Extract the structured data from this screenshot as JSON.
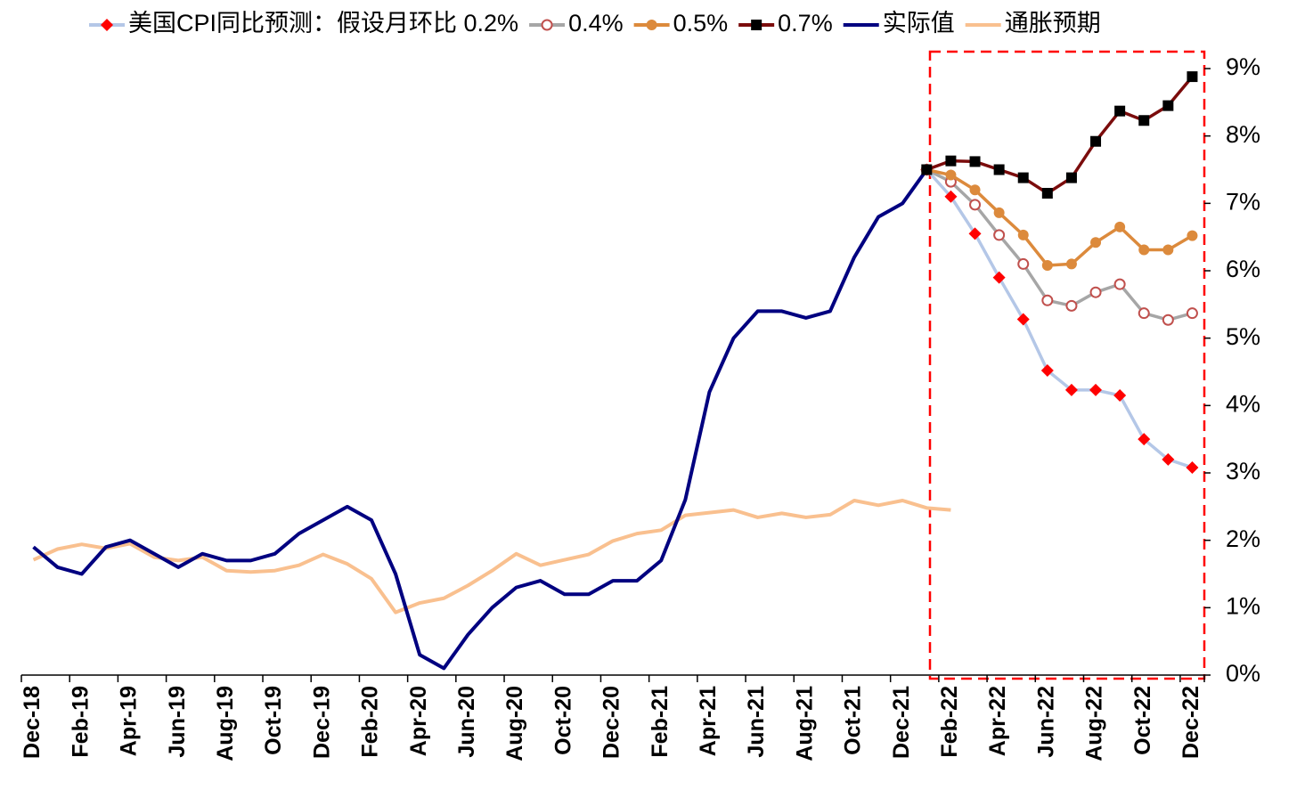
{
  "chart_data": {
    "type": "line",
    "categories": [
      "Dec-18",
      null,
      "Feb-19",
      null,
      "Apr-19",
      null,
      "Jun-19",
      null,
      "Aug-19",
      null,
      "Oct-19",
      null,
      "Dec-19",
      null,
      "Feb-20",
      null,
      "Apr-20",
      null,
      "Jun-20",
      null,
      "Aug-20",
      null,
      "Oct-20",
      null,
      "Dec-20",
      null,
      "Feb-21",
      null,
      "Apr-21",
      null,
      "Jun-21",
      null,
      "Aug-21",
      null,
      "Oct-21",
      null,
      "Dec-21",
      null,
      "Feb-22",
      null,
      "Apr-22",
      null,
      "Jun-22",
      null,
      "Aug-22",
      null,
      "Oct-22",
      null,
      "Dec-22"
    ],
    "series": [
      {
        "name": "美国CPI同比预测：假设月环比 0.2%",
        "color": "#b4c7e7",
        "marker": "diamond",
        "marker_color": "#ff0000",
        "values": [
          null,
          null,
          null,
          null,
          null,
          null,
          null,
          null,
          null,
          null,
          null,
          null,
          null,
          null,
          null,
          null,
          null,
          null,
          null,
          null,
          null,
          null,
          null,
          null,
          null,
          null,
          null,
          null,
          null,
          null,
          null,
          null,
          null,
          null,
          null,
          null,
          null,
          7.5,
          7.1,
          6.55,
          5.9,
          5.28,
          4.52,
          4.23,
          4.23,
          4.15,
          3.5,
          3.2,
          3.08
        ]
      },
      {
        "name": "0.4%",
        "color": "#a6a6a6",
        "marker": "circle",
        "marker_color": "#c0504d",
        "values": [
          null,
          null,
          null,
          null,
          null,
          null,
          null,
          null,
          null,
          null,
          null,
          null,
          null,
          null,
          null,
          null,
          null,
          null,
          null,
          null,
          null,
          null,
          null,
          null,
          null,
          null,
          null,
          null,
          null,
          null,
          null,
          null,
          null,
          null,
          null,
          null,
          null,
          7.5,
          7.32,
          6.98,
          6.53,
          6.1,
          5.56,
          5.48,
          5.68,
          5.8,
          5.37,
          5.27,
          5.37
        ]
      },
      {
        "name": "0.5%",
        "color": "#dc8a3c",
        "marker": "dot",
        "marker_color": "#dc8a3c",
        "values": [
          null,
          null,
          null,
          null,
          null,
          null,
          null,
          null,
          null,
          null,
          null,
          null,
          null,
          null,
          null,
          null,
          null,
          null,
          null,
          null,
          null,
          null,
          null,
          null,
          null,
          null,
          null,
          null,
          null,
          null,
          null,
          null,
          null,
          null,
          null,
          null,
          null,
          7.5,
          7.42,
          7.2,
          6.86,
          6.53,
          6.08,
          6.1,
          6.42,
          6.65,
          6.31,
          6.31,
          6.52
        ]
      },
      {
        "name": "0.7%",
        "color": "#7b0c0c",
        "marker": "square",
        "marker_color": "#000000",
        "values": [
          null,
          null,
          null,
          null,
          null,
          null,
          null,
          null,
          null,
          null,
          null,
          null,
          null,
          null,
          null,
          null,
          null,
          null,
          null,
          null,
          null,
          null,
          null,
          null,
          null,
          null,
          null,
          null,
          null,
          null,
          null,
          null,
          null,
          null,
          null,
          null,
          null,
          7.5,
          7.63,
          7.62,
          7.5,
          7.38,
          7.15,
          7.38,
          7.92,
          8.37,
          8.23,
          8.45,
          8.88
        ]
      },
      {
        "name": "实际值",
        "color": "#000080",
        "marker": "none",
        "values": [
          1.9,
          1.6,
          1.5,
          1.9,
          2.0,
          1.8,
          1.6,
          1.8,
          1.7,
          1.7,
          1.8,
          2.1,
          2.3,
          2.5,
          2.3,
          1.5,
          0.3,
          0.1,
          0.6,
          1.0,
          1.3,
          1.4,
          1.2,
          1.2,
          1.4,
          1.4,
          1.7,
          2.6,
          4.2,
          5.0,
          5.4,
          5.4,
          5.3,
          5.4,
          6.2,
          6.8,
          7.0,
          7.5,
          null,
          null,
          null,
          null,
          null,
          null,
          null,
          null,
          null,
          null,
          null
        ]
      },
      {
        "name": "通胀预期",
        "color": "#f9c08f",
        "marker": "none",
        "values": [
          1.71,
          1.87,
          1.94,
          1.88,
          1.95,
          1.75,
          1.7,
          1.75,
          1.55,
          1.53,
          1.55,
          1.63,
          1.79,
          1.65,
          1.43,
          0.93,
          1.07,
          1.14,
          1.33,
          1.55,
          1.8,
          1.63,
          1.71,
          1.79,
          1.99,
          2.1,
          2.15,
          2.37,
          2.41,
          2.45,
          2.34,
          2.4,
          2.34,
          2.38,
          2.59,
          2.52,
          2.59,
          2.48,
          2.45,
          null,
          null,
          null,
          null,
          null,
          null,
          null,
          null,
          null,
          null
        ]
      }
    ],
    "ylim": [
      0,
      9
    ],
    "yticks": [
      {
        "value": 0,
        "label": "0%"
      },
      {
        "value": 1,
        "label": "1%"
      },
      {
        "value": 2,
        "label": "2%"
      },
      {
        "value": 3,
        "label": "3%"
      },
      {
        "value": 4,
        "label": "4%"
      },
      {
        "value": 5,
        "label": "5%"
      },
      {
        "value": 6,
        "label": "6%"
      },
      {
        "value": 7,
        "label": "7%"
      },
      {
        "value": 8,
        "label": "8%"
      },
      {
        "value": 9,
        "label": "9%"
      }
    ],
    "y_axis_side": "right",
    "legend": "top"
  }
}
